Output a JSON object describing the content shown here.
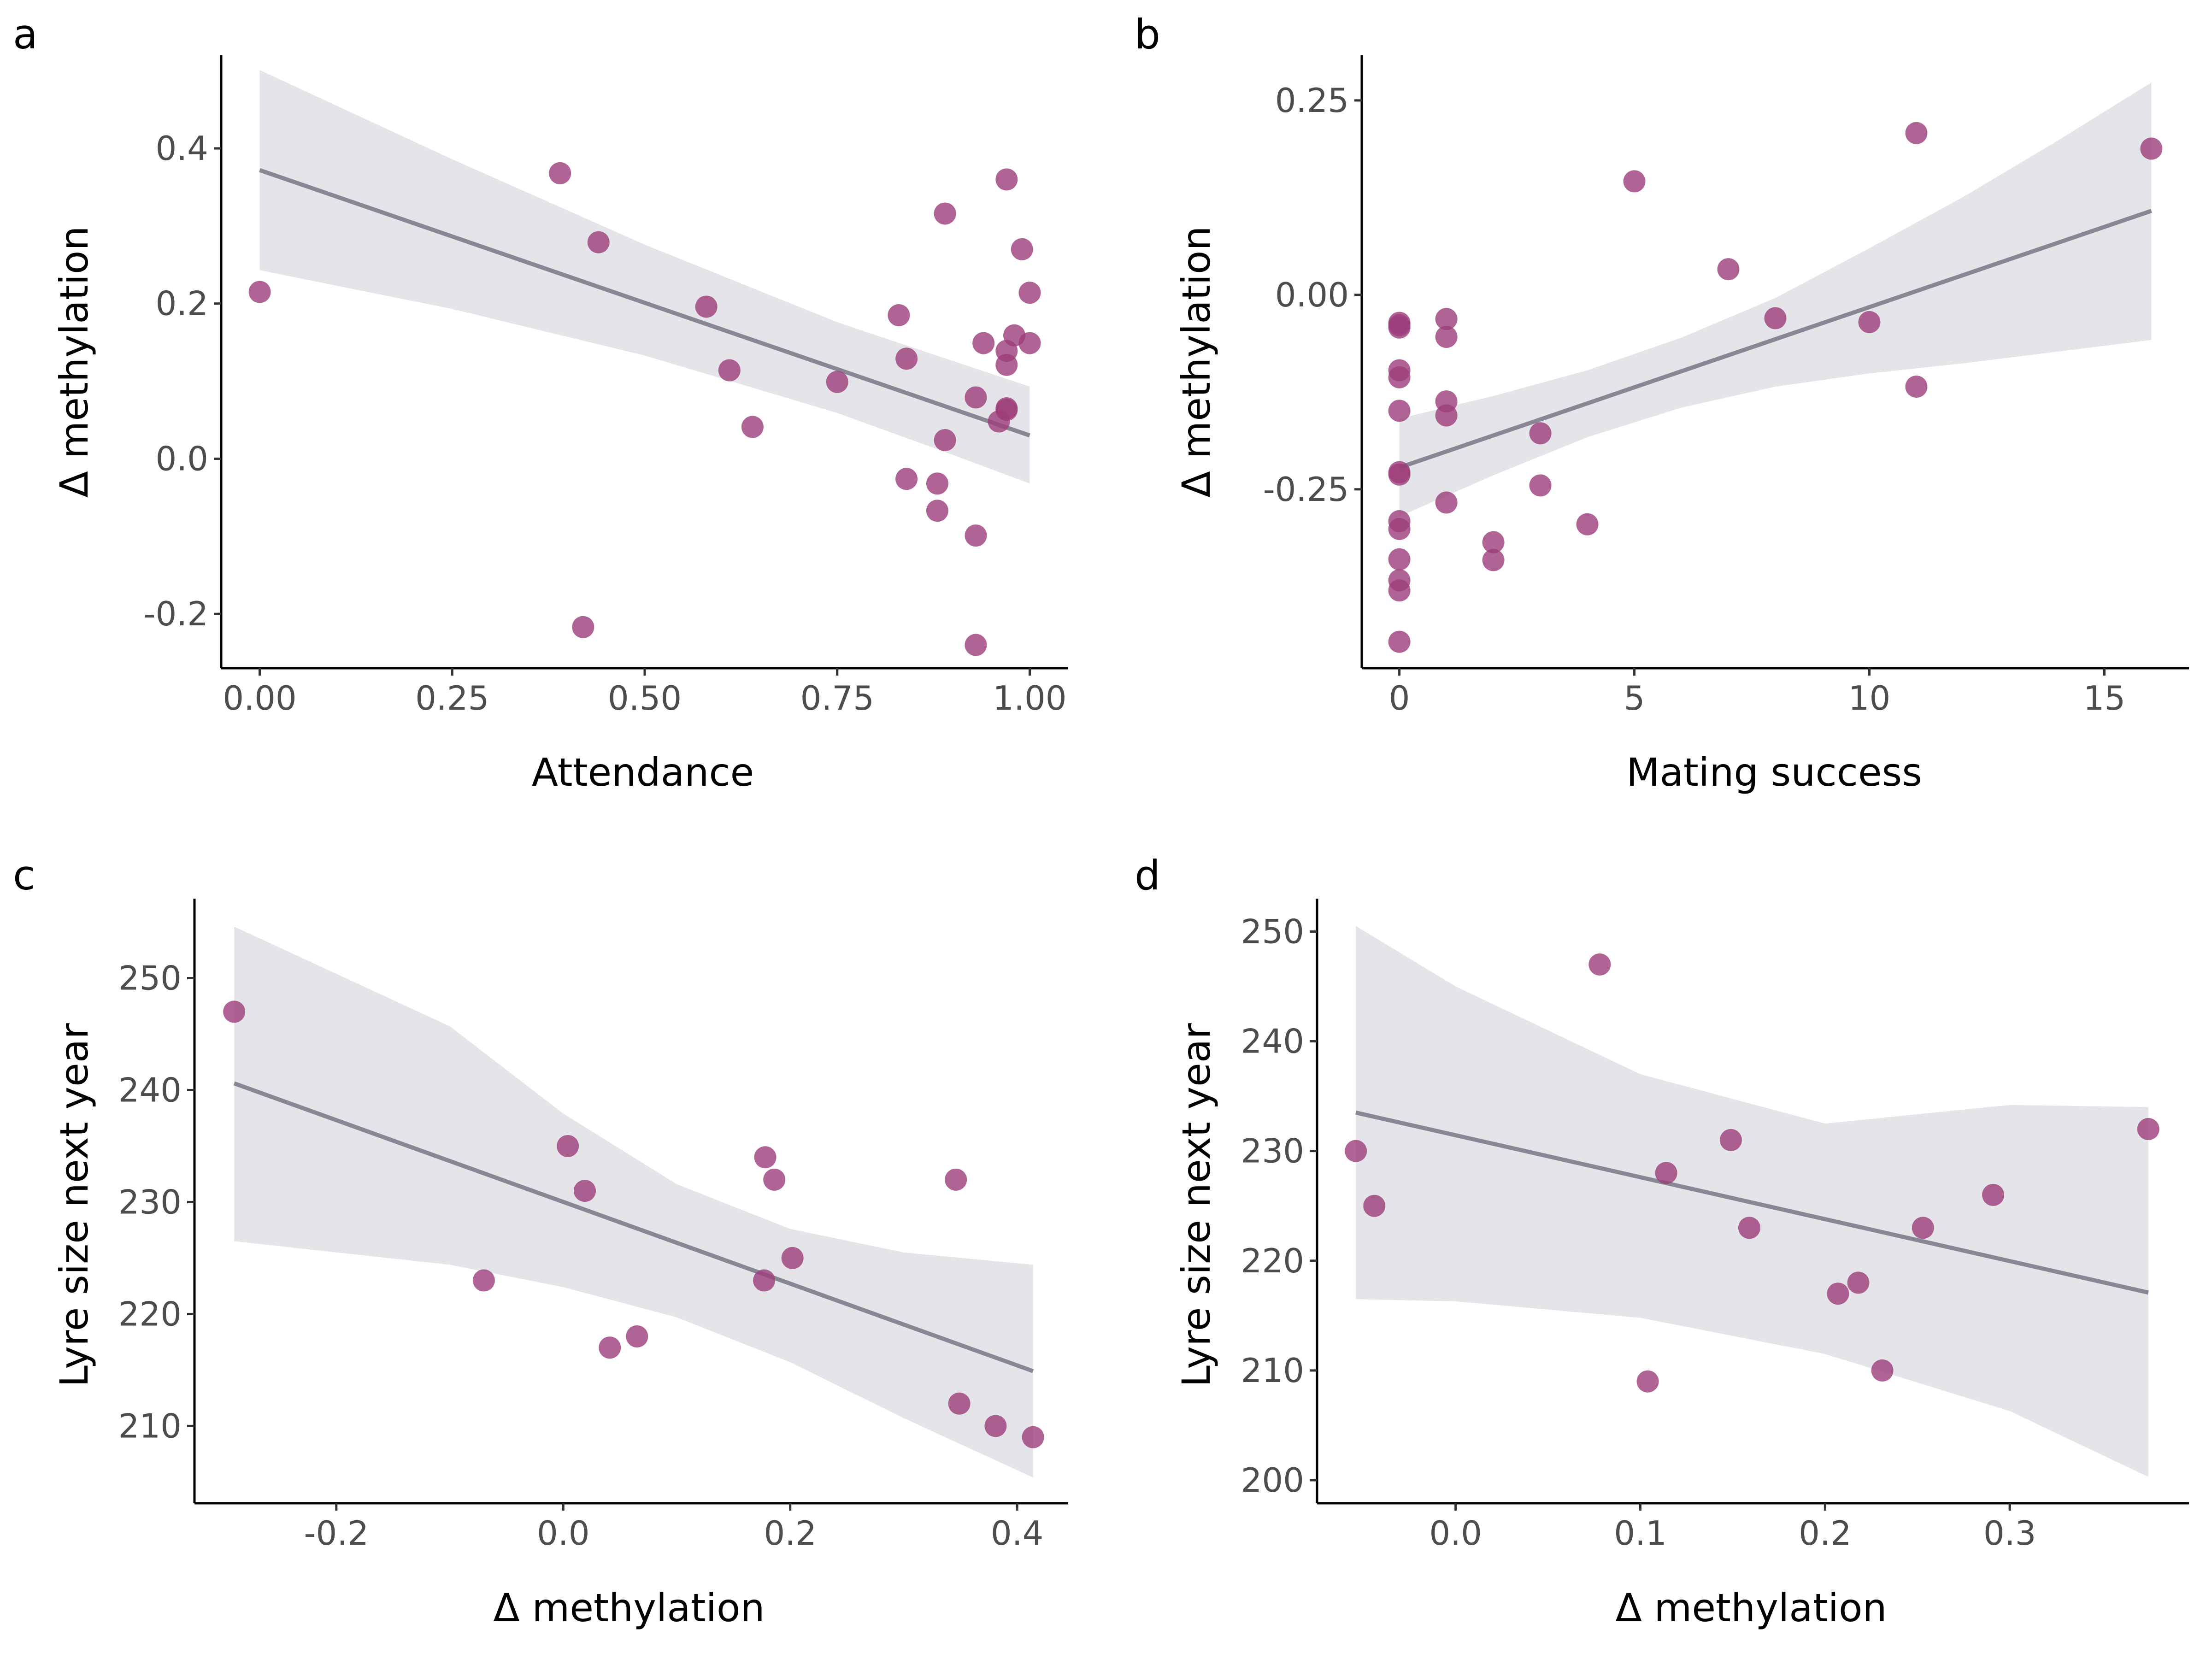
{
  "colors": {
    "points": "#9c3d7a",
    "fit_line": "#8a8794",
    "ci_band": "#e5e5e9",
    "axis": "#000000",
    "tick_text": "#4d4d4d"
  },
  "chart_data": [
    {
      "panel": "a",
      "type": "scatter",
      "xlabel": "Attendance",
      "ylabel": "Δ methylation",
      "xlim": [
        -0.05,
        1.05
      ],
      "ylim": [
        -0.27,
        0.52
      ],
      "xticks": [
        0.0,
        0.25,
        0.5,
        0.75,
        1.0
      ],
      "xtick_labels": [
        "0.00",
        "0.25",
        "0.50",
        "0.75",
        "1.00"
      ],
      "yticks": [
        -0.2,
        0.0,
        0.2,
        0.4
      ],
      "ytick_labels": [
        "-0.2",
        "0.0",
        "0.2",
        "0.4"
      ],
      "points": [
        [
          0.0,
          0.215
        ],
        [
          0.39,
          0.368
        ],
        [
          0.42,
          -0.217
        ],
        [
          0.44,
          0.279
        ],
        [
          0.58,
          0.196
        ],
        [
          0.61,
          0.114
        ],
        [
          0.64,
          0.041
        ],
        [
          0.75,
          0.099
        ],
        [
          0.83,
          0.185
        ],
        [
          0.84,
          0.129
        ],
        [
          0.84,
          -0.026
        ],
        [
          0.88,
          -0.032
        ],
        [
          0.88,
          -0.067
        ],
        [
          0.89,
          0.316
        ],
        [
          0.89,
          0.024
        ],
        [
          0.93,
          0.079
        ],
        [
          0.93,
          -0.099
        ],
        [
          0.93,
          -0.24
        ],
        [
          0.94,
          0.149
        ],
        [
          0.96,
          0.048
        ],
        [
          0.97,
          0.36
        ],
        [
          0.97,
          0.139
        ],
        [
          0.97,
          0.121
        ],
        [
          0.97,
          0.065
        ],
        [
          0.97,
          0.063
        ],
        [
          0.98,
          0.159
        ],
        [
          0.99,
          0.27
        ],
        [
          1.0,
          0.214
        ],
        [
          1.0,
          0.149
        ]
      ],
      "fit": {
        "x": [
          0.0,
          1.0
        ],
        "y": [
          0.372,
          0.03
        ]
      },
      "ci": {
        "x": [
          0.0,
          0.25,
          0.5,
          0.75,
          0.9,
          1.0
        ],
        "lower": [
          0.243,
          0.193,
          0.133,
          0.059,
          0.005,
          -0.032
        ],
        "upper": [
          0.501,
          0.386,
          0.276,
          0.176,
          0.126,
          0.093
        ]
      }
    },
    {
      "panel": "b",
      "type": "scatter",
      "xlabel": "Mating success",
      "ylabel": "Δ methylation",
      "xlim": [
        -0.8,
        16.8
      ],
      "ylim": [
        -0.48,
        0.308
      ],
      "xticks": [
        0,
        5,
        10,
        15
      ],
      "xtick_labels": [
        "0",
        "5",
        "10",
        "15"
      ],
      "yticks": [
        -0.25,
        0.0,
        0.25
      ],
      "ytick_labels": [
        "-0.25",
        "0.00",
        "0.25"
      ],
      "points": [
        [
          0,
          -0.036
        ],
        [
          0,
          -0.039
        ],
        [
          0,
          -0.042
        ],
        [
          0,
          -0.097
        ],
        [
          0,
          -0.106
        ],
        [
          0,
          -0.149
        ],
        [
          0,
          -0.228
        ],
        [
          0,
          -0.231
        ],
        [
          0,
          -0.291
        ],
        [
          0,
          -0.301
        ],
        [
          0,
          -0.34
        ],
        [
          0,
          -0.367
        ],
        [
          0,
          -0.38
        ],
        [
          0,
          -0.446
        ],
        [
          1,
          -0.031
        ],
        [
          1,
          -0.054
        ],
        [
          1,
          -0.137
        ],
        [
          1,
          -0.155
        ],
        [
          1,
          -0.267
        ],
        [
          2,
          -0.318
        ],
        [
          2,
          -0.341
        ],
        [
          3,
          -0.178
        ],
        [
          3,
          -0.245
        ],
        [
          4,
          -0.295
        ],
        [
          5,
          0.146
        ],
        [
          7,
          0.033
        ],
        [
          8,
          -0.03
        ],
        [
          10,
          -0.035
        ],
        [
          11,
          0.208
        ],
        [
          11,
          -0.118
        ],
        [
          16,
          0.188
        ]
      ],
      "fit": {
        "x": [
          0,
          16
        ],
        "y": [
          -0.222,
          0.108
        ]
      },
      "ci": {
        "x": [
          0,
          2,
          4,
          6,
          8,
          10,
          12,
          14,
          16
        ],
        "lower": [
          -0.285,
          -0.232,
          -0.183,
          -0.145,
          -0.118,
          -0.101,
          -0.088,
          -0.073,
          -0.058
        ],
        "upper": [
          -0.159,
          -0.13,
          -0.097,
          -0.055,
          -0.004,
          0.06,
          0.126,
          0.198,
          0.273
        ]
      }
    },
    {
      "panel": "c",
      "type": "scatter",
      "xlabel": "Δ methylation",
      "ylabel": "Lyre size next year",
      "xlim": [
        -0.325,
        0.445
      ],
      "ylim": [
        203.1,
        257.1
      ],
      "xticks": [
        -0.2,
        0.0,
        0.2,
        0.4
      ],
      "xtick_labels": [
        "-0.2",
        "0.0",
        "0.2",
        "0.4"
      ],
      "yticks": [
        210,
        220,
        230,
        240,
        250
      ],
      "ytick_labels": [
        "210",
        "220",
        "230",
        "240",
        "250"
      ],
      "points": [
        [
          -0.29,
          247
        ],
        [
          -0.07,
          223
        ],
        [
          0.004,
          235
        ],
        [
          0.019,
          231
        ],
        [
          0.041,
          217
        ],
        [
          0.065,
          218
        ],
        [
          0.177,
          223
        ],
        [
          0.178,
          234
        ],
        [
          0.186,
          232
        ],
        [
          0.202,
          225
        ],
        [
          0.346,
          232
        ],
        [
          0.349,
          212
        ],
        [
          0.381,
          210
        ],
        [
          0.414,
          209
        ]
      ],
      "fit": {
        "x": [
          -0.29,
          0.414
        ],
        "y": [
          240.6,
          214.9
        ]
      },
      "ci": {
        "x": [
          -0.29,
          -0.1,
          0.0,
          0.1,
          0.2,
          0.3,
          0.414
        ],
        "lower": [
          226.5,
          224.4,
          222.4,
          219.7,
          215.7,
          210.7,
          205.4
        ],
        "upper": [
          254.6,
          245.7,
          237.9,
          231.6,
          227.6,
          225.5,
          224.4
        ]
      }
    },
    {
      "panel": "d",
      "type": "scatter",
      "xlabel": "Δ methylation",
      "ylabel": "Lyre size next year",
      "xlim": [
        -0.075,
        0.397
      ],
      "ylim": [
        197.9,
        253.0
      ],
      "xticks": [
        0.0,
        0.1,
        0.2,
        0.3
      ],
      "xtick_labels": [
        "0.0",
        "0.1",
        "0.2",
        "0.3"
      ],
      "yticks": [
        200,
        210,
        220,
        230,
        240,
        250
      ],
      "ytick_labels": [
        "200",
        "210",
        "220",
        "230",
        "240",
        "250"
      ],
      "points": [
        [
          -0.054,
          230
        ],
        [
          -0.044,
          225
        ],
        [
          0.078,
          247
        ],
        [
          0.104,
          209
        ],
        [
          0.114,
          228
        ],
        [
          0.149,
          231
        ],
        [
          0.159,
          223
        ],
        [
          0.207,
          217
        ],
        [
          0.218,
          218
        ],
        [
          0.231,
          210
        ],
        [
          0.253,
          223
        ],
        [
          0.291,
          226
        ],
        [
          0.375,
          232
        ]
      ],
      "fit": {
        "x": [
          -0.054,
          0.375
        ],
        "y": [
          233.5,
          217.1
        ]
      },
      "ci": {
        "x": [
          -0.054,
          0.0,
          0.1,
          0.2,
          0.3,
          0.375
        ],
        "lower": [
          216.5,
          216.3,
          214.8,
          211.5,
          206.3,
          200.3
        ],
        "upper": [
          250.5,
          245.0,
          237.0,
          232.5,
          234.2,
          234.0
        ]
      }
    }
  ]
}
